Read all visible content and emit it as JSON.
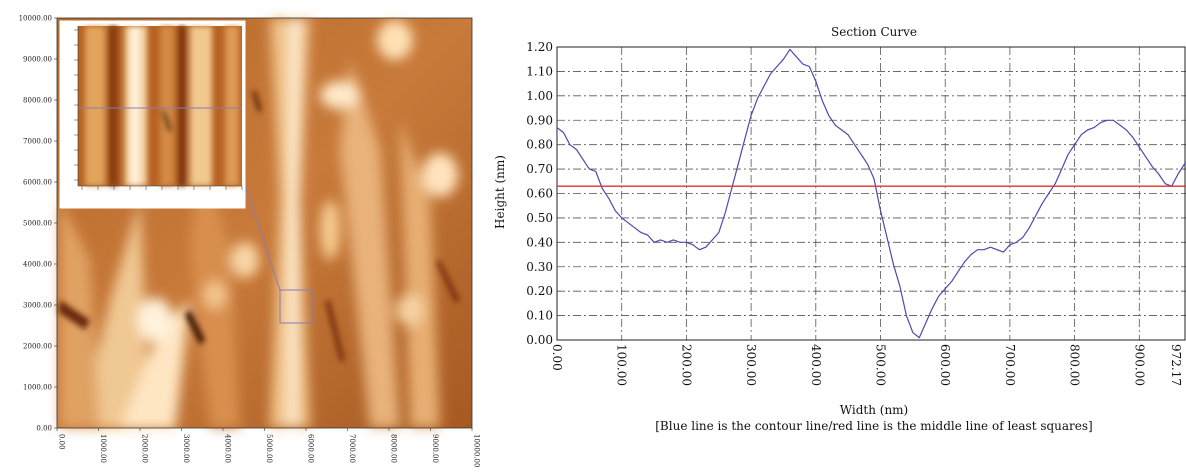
{
  "afm": {
    "y_ticks": [
      "10000.00",
      "9000.00",
      "8000.00",
      "7000.00",
      "6000.00",
      "5000.00",
      "4000.00",
      "3000.00",
      "2000.00",
      "1000.00",
      "0.00"
    ],
    "x_ticks": [
      "0.00",
      "1000.00",
      "2000.00",
      "3000.00",
      "4000.00",
      "5000.00",
      "6000.00",
      "7000.00",
      "8000.00",
      "9000.00",
      "10000.00"
    ],
    "colors": {
      "dark": "#7a3a12",
      "mid": "#c06a2a",
      "light": "#f3d6ad",
      "highlight": "#fff4e0",
      "inset_border": "#ffffff",
      "marker": "#8a7ab8"
    }
  },
  "chart_data": {
    "type": "line",
    "title": "Section Curve",
    "xlabel": "Width (nm)",
    "ylabel": "Height (nm)",
    "note": "[Blue line is the contour line/red line is the middle line of least squares]",
    "xlim": [
      0,
      972.17
    ],
    "ylim": [
      0,
      1.2
    ],
    "x_ticks": [
      0,
      100,
      200,
      300,
      400,
      500,
      600,
      700,
      800,
      900,
      972.17
    ],
    "x_tick_labels": [
      "0.00",
      "100.00",
      "200.00",
      "300.00",
      "400.00",
      "500.00",
      "600.00",
      "700.00",
      "800.00",
      "900.00",
      "972.17"
    ],
    "y_ticks": [
      0,
      0.1,
      0.2,
      0.3,
      0.4,
      0.5,
      0.6,
      0.7,
      0.8,
      0.9,
      1.0,
      1.1,
      1.2
    ],
    "y_tick_labels": [
      "0.00",
      "0.10",
      "0.20",
      "0.30",
      "0.40",
      "0.50",
      "0.60",
      "0.70",
      "0.80",
      "0.90",
      "1.00",
      "1.10",
      "1.20"
    ],
    "grid": true,
    "colors": {
      "contour": "#4a4ab0",
      "mean": "#e03030",
      "grid": "#555555"
    },
    "series": [
      {
        "name": "contour",
        "x": [
          0,
          10,
          20,
          30,
          40,
          50,
          60,
          70,
          80,
          90,
          100,
          110,
          120,
          130,
          140,
          150,
          160,
          170,
          180,
          190,
          200,
          210,
          220,
          230,
          240,
          250,
          260,
          270,
          280,
          290,
          300,
          310,
          320,
          330,
          340,
          350,
          360,
          370,
          380,
          390,
          400,
          410,
          420,
          430,
          440,
          450,
          460,
          470,
          480,
          490,
          500,
          510,
          520,
          530,
          540,
          550,
          560,
          570,
          580,
          590,
          600,
          610,
          620,
          630,
          640,
          650,
          660,
          670,
          680,
          690,
          700,
          710,
          720,
          730,
          740,
          750,
          760,
          770,
          780,
          790,
          800,
          810,
          820,
          830,
          840,
          850,
          860,
          870,
          880,
          890,
          900,
          910,
          920,
          930,
          940,
          950,
          960,
          972
        ],
        "values": [
          0.87,
          0.85,
          0.8,
          0.78,
          0.74,
          0.7,
          0.69,
          0.62,
          0.58,
          0.53,
          0.5,
          0.48,
          0.46,
          0.44,
          0.43,
          0.4,
          0.41,
          0.4,
          0.41,
          0.4,
          0.4,
          0.39,
          0.37,
          0.38,
          0.41,
          0.44,
          0.52,
          0.62,
          0.72,
          0.82,
          0.92,
          0.99,
          1.04,
          1.09,
          1.12,
          1.15,
          1.19,
          1.16,
          1.13,
          1.12,
          1.06,
          0.98,
          0.92,
          0.88,
          0.86,
          0.84,
          0.8,
          0.76,
          0.72,
          0.66,
          0.53,
          0.42,
          0.31,
          0.22,
          0.1,
          0.03,
          0.01,
          0.07,
          0.13,
          0.18,
          0.21,
          0.24,
          0.28,
          0.32,
          0.35,
          0.37,
          0.37,
          0.38,
          0.37,
          0.36,
          0.39,
          0.4,
          0.42,
          0.46,
          0.51,
          0.56,
          0.6,
          0.64,
          0.7,
          0.76,
          0.8,
          0.84,
          0.86,
          0.87,
          0.89,
          0.9,
          0.9,
          0.88,
          0.86,
          0.83,
          0.79,
          0.75,
          0.71,
          0.68,
          0.64,
          0.63,
          0.68,
          0.73
        ]
      },
      {
        "name": "mean",
        "x": [
          0,
          972.17
        ],
        "values": [
          0.63,
          0.63
        ]
      }
    ]
  }
}
